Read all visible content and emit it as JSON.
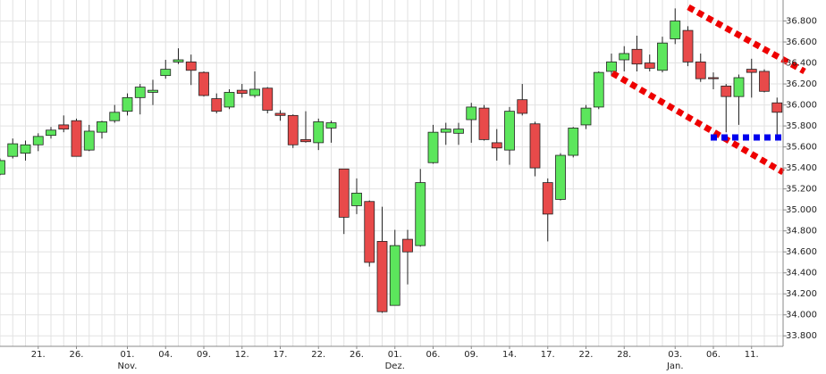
{
  "chart_data": {
    "type": "candlestick",
    "categories": [
      null,
      null,
      null,
      "21.",
      null,
      null,
      "26.",
      null,
      null,
      null,
      "01.",
      null,
      null,
      "04.",
      null,
      null,
      "09.",
      null,
      null,
      "12.",
      null,
      null,
      "17.",
      null,
      null,
      "22.",
      null,
      null,
      "26.",
      null,
      null,
      "01.",
      null,
      null,
      "06.",
      null,
      null,
      "09.",
      null,
      null,
      "14.",
      null,
      null,
      "17.",
      null,
      null,
      "22.",
      null,
      null,
      "28.",
      null,
      null,
      null,
      "03.",
      null,
      null,
      "06.",
      null,
      null,
      "11.",
      null,
      null
    ],
    "month_labels": [
      null,
      null,
      null,
      null,
      null,
      null,
      null,
      null,
      null,
      null,
      "Nov.",
      null,
      null,
      null,
      null,
      null,
      null,
      null,
      null,
      null,
      null,
      null,
      null,
      null,
      null,
      null,
      null,
      null,
      null,
      null,
      null,
      "Dez.",
      null,
      null,
      null,
      null,
      null,
      null,
      null,
      null,
      null,
      null,
      null,
      null,
      null,
      null,
      null,
      null,
      null,
      null,
      null,
      null,
      null,
      "Jan.",
      null,
      null,
      null,
      null,
      null,
      null,
      null,
      null
    ],
    "open": [
      35340,
      35510,
      35540,
      35620,
      35710,
      35810,
      35850,
      35570,
      35740,
      35850,
      35940,
      36070,
      36120,
      36280,
      36410,
      36410,
      36310,
      36060,
      35980,
      36140,
      36090,
      36160,
      35920,
      35900,
      35670,
      35640,
      35780,
      35390,
      35040,
      35080,
      34700,
      34090,
      34720,
      34660,
      35450,
      35740,
      35730,
      35860,
      35970,
      35640,
      35570,
      36050,
      35820,
      35260,
      35100,
      35520,
      35810,
      35980,
      36320,
      36430,
      36530,
      36400,
      36330,
      36630,
      36710,
      36410,
      36260,
      36180,
      36080,
      36340,
      36320,
      36020
    ],
    "high": [
      35490,
      35680,
      35660,
      35730,
      35790,
      35900,
      35870,
      35810,
      35850,
      36000,
      36110,
      36200,
      36240,
      36430,
      36540,
      36480,
      36320,
      36110,
      36150,
      36200,
      36320,
      36170,
      35950,
      35910,
      35940,
      35870,
      35850,
      35390,
      35300,
      35090,
      35030,
      34810,
      34810,
      35390,
      35810,
      35830,
      35830,
      36020,
      36000,
      35770,
      35980,
      36200,
      35840,
      35300,
      35540,
      35790,
      36000,
      36320,
      36490,
      36560,
      36660,
      36480,
      36650,
      36920,
      36750,
      36490,
      36310,
      36200,
      36290,
      36440,
      36340,
      36070
    ],
    "low": [
      35330,
      35490,
      35470,
      35560,
      35680,
      35740,
      35510,
      35560,
      35680,
      35830,
      35900,
      35910,
      36000,
      36250,
      36390,
      36190,
      36080,
      35920,
      35960,
      36070,
      36070,
      35920,
      35850,
      35590,
      35640,
      35570,
      35640,
      34770,
      34960,
      34460,
      34020,
      34090,
      34290,
      34650,
      35440,
      35620,
      35620,
      35640,
      35660,
      35470,
      35430,
      35900,
      35320,
      34700,
      35090,
      35500,
      35770,
      35960,
      36280,
      36320,
      36320,
      36320,
      36310,
      36580,
      36370,
      36220,
      36150,
      35740,
      35810,
      36070,
      36120,
      35680
    ],
    "close": [
      35470,
      35630,
      35620,
      35700,
      35760,
      35770,
      35510,
      35750,
      35840,
      35930,
      36070,
      36170,
      36140,
      36340,
      36430,
      36330,
      36090,
      35940,
      36120,
      36110,
      36150,
      35950,
      35900,
      35620,
      35650,
      35840,
      35830,
      34930,
      35160,
      34500,
      34030,
      34660,
      34600,
      35260,
      35740,
      35770,
      35770,
      35980,
      35670,
      35590,
      35940,
      35920,
      35400,
      34960,
      35520,
      35780,
      35970,
      36310,
      36410,
      36490,
      36390,
      36350,
      36590,
      36800,
      36410,
      36250,
      36250,
      36080,
      36260,
      36310,
      36130,
      35930
    ],
    "up_color": "#5ce65c",
    "down_color": "#e84a4a",
    "ylim": [
      33700,
      37000
    ],
    "yticks": [
      {
        "value": 33800,
        "label": "33.800"
      },
      {
        "value": 34000,
        "label": "34.000"
      },
      {
        "value": 34200,
        "label": "34.200"
      },
      {
        "value": 34400,
        "label": "34.400"
      },
      {
        "value": 34600,
        "label": "34.600"
      },
      {
        "value": 34800,
        "label": "34.800"
      },
      {
        "value": 35000,
        "label": "35.000"
      },
      {
        "value": 35200,
        "label": "35.200"
      },
      {
        "value": 35400,
        "label": "35.400"
      },
      {
        "value": 35600,
        "label": "35.600"
      },
      {
        "value": 35800,
        "label": "35.800"
      },
      {
        "value": 36000,
        "label": "36.000"
      },
      {
        "value": 36200,
        "label": "36.200"
      },
      {
        "value": 36400,
        "label": "36.400"
      },
      {
        "value": 36600,
        "label": "36.600"
      },
      {
        "value": 36800,
        "label": "36.800"
      }
    ],
    "grid": true
  }
}
